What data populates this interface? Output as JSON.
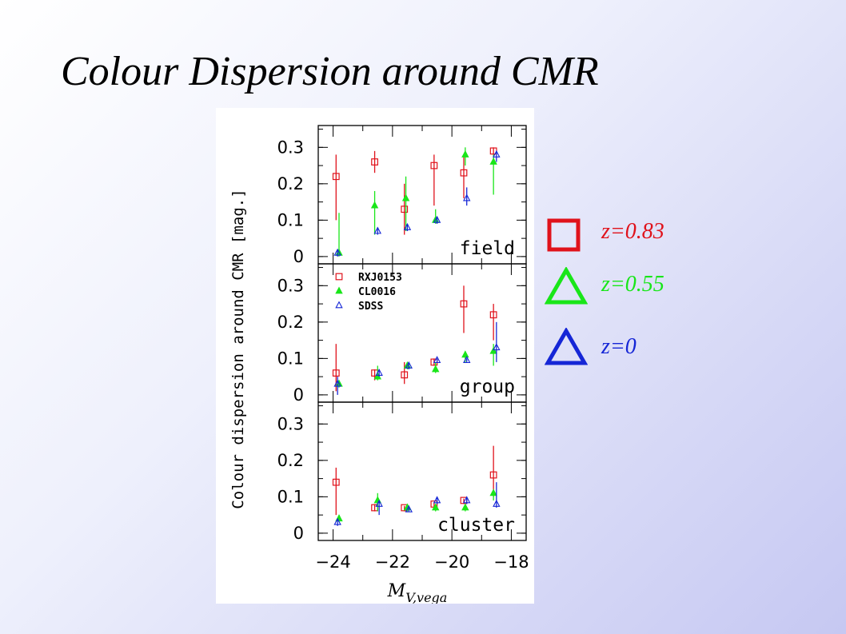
{
  "slide": {
    "title": "Colour Dispersion around CMR"
  },
  "key_legend": [
    {
      "label": "z=0.83",
      "marker": "square",
      "color": "#e0121b"
    },
    {
      "label": "z=0.55",
      "marker": "triangle",
      "color": "#19e619"
    },
    {
      "label": "z=0",
      "marker": "triangle",
      "color": "#1526d6"
    }
  ],
  "chart_data": {
    "type": "scatter",
    "ylabel": "Colour dispersion around CMR [mag.]",
    "xlabel": "M_V,vega",
    "xlim": [
      -24.5,
      -17.5
    ],
    "x_ticks": [
      "−24",
      "−22",
      "−20",
      "−18"
    ],
    "x_tick_values": [
      -24,
      -22,
      -20,
      -18
    ],
    "ylim": [
      -0.02,
      0.36
    ],
    "y_ticks": [
      "0",
      "0.1",
      "0.2",
      "0.3"
    ],
    "y_tick_values": [
      0,
      0.1,
      0.2,
      0.3
    ],
    "panel_legend": [
      {
        "name": "RXJ0153",
        "marker": "square",
        "color": "#e0121b"
      },
      {
        "name": "CL0016",
        "marker": "triangle-filled",
        "color": "#19e619"
      },
      {
        "name": "SDSS",
        "marker": "triangle-open",
        "color": "#1526d6"
      }
    ],
    "panels": [
      {
        "name": "field",
        "series": [
          {
            "name": "RXJ0153",
            "points": [
              {
                "x": -23.9,
                "y": 0.22,
                "lo": 0.1,
                "hi": 0.28
              },
              {
                "x": -22.6,
                "y": 0.26,
                "lo": 0.23,
                "hi": 0.29
              },
              {
                "x": -21.6,
                "y": 0.13,
                "lo": 0.06,
                "hi": 0.2
              },
              {
                "x": -20.6,
                "y": 0.25,
                "lo": 0.14,
                "hi": 0.28
              },
              {
                "x": -19.6,
                "y": 0.23,
                "lo": 0.16,
                "hi": 0.28
              },
              {
                "x": -18.6,
                "y": 0.29,
                "lo": 0.26,
                "hi": 0.3
              }
            ]
          },
          {
            "name": "CL0016",
            "points": [
              {
                "x": -23.8,
                "y": 0.01,
                "lo": 0.0,
                "hi": 0.12
              },
              {
                "x": -22.6,
                "y": 0.14,
                "lo": 0.06,
                "hi": 0.18
              },
              {
                "x": -21.55,
                "y": 0.16,
                "lo": 0.07,
                "hi": 0.22
              },
              {
                "x": -20.55,
                "y": 0.1,
                "lo": 0.09,
                "hi": 0.13
              },
              {
                "x": -19.55,
                "y": 0.28,
                "lo": 0.25,
                "hi": 0.3
              },
              {
                "x": -18.6,
                "y": 0.26,
                "lo": 0.17,
                "hi": 0.28
              }
            ]
          },
          {
            "name": "SDSS",
            "points": [
              {
                "x": -23.85,
                "y": 0.01,
                "lo": 0.0,
                "hi": 0.02
              },
              {
                "x": -22.5,
                "y": 0.07,
                "lo": 0.06,
                "hi": 0.08
              },
              {
                "x": -21.5,
                "y": 0.08,
                "lo": 0.07,
                "hi": 0.09
              },
              {
                "x": -20.5,
                "y": 0.1,
                "lo": 0.09,
                "hi": 0.11
              },
              {
                "x": -19.5,
                "y": 0.16,
                "lo": 0.14,
                "hi": 0.19
              },
              {
                "x": -18.5,
                "y": 0.28,
                "lo": 0.26,
                "hi": 0.29
              }
            ]
          }
        ]
      },
      {
        "name": "group",
        "series": [
          {
            "name": "RXJ0153",
            "points": [
              {
                "x": -23.9,
                "y": 0.06,
                "lo": 0.01,
                "hi": 0.14
              },
              {
                "x": -22.6,
                "y": 0.06,
                "lo": 0.04,
                "hi": 0.07
              },
              {
                "x": -21.6,
                "y": 0.055,
                "lo": 0.03,
                "hi": 0.09
              },
              {
                "x": -20.6,
                "y": 0.09,
                "lo": 0.08,
                "hi": 0.1
              },
              {
                "x": -19.6,
                "y": 0.25,
                "lo": 0.17,
                "hi": 0.3
              },
              {
                "x": -18.6,
                "y": 0.22,
                "lo": 0.15,
                "hi": 0.25
              }
            ]
          },
          {
            "name": "CL0016",
            "points": [
              {
                "x": -23.8,
                "y": 0.03,
                "lo": 0.02,
                "hi": 0.04
              },
              {
                "x": -22.5,
                "y": 0.05,
                "lo": 0.04,
                "hi": 0.08
              },
              {
                "x": -21.5,
                "y": 0.08,
                "lo": 0.07,
                "hi": 0.09
              },
              {
                "x": -20.55,
                "y": 0.07,
                "lo": 0.06,
                "hi": 0.09
              },
              {
                "x": -19.55,
                "y": 0.11,
                "lo": 0.09,
                "hi": 0.12
              },
              {
                "x": -18.6,
                "y": 0.12,
                "lo": 0.08,
                "hi": 0.14
              }
            ]
          },
          {
            "name": "SDSS",
            "points": [
              {
                "x": -23.85,
                "y": 0.03,
                "lo": 0.0,
                "hi": 0.05
              },
              {
                "x": -22.45,
                "y": 0.06,
                "lo": 0.05,
                "hi": 0.07
              },
              {
                "x": -21.45,
                "y": 0.08,
                "lo": 0.07,
                "hi": 0.09
              },
              {
                "x": -20.5,
                "y": 0.095,
                "lo": 0.09,
                "hi": 0.1
              },
              {
                "x": -19.5,
                "y": 0.095,
                "lo": 0.09,
                "hi": 0.1
              },
              {
                "x": -18.5,
                "y": 0.13,
                "lo": 0.09,
                "hi": 0.2
              }
            ]
          }
        ]
      },
      {
        "name": "cluster",
        "series": [
          {
            "name": "RXJ0153",
            "points": [
              {
                "x": -23.9,
                "y": 0.14,
                "lo": 0.05,
                "hi": 0.18
              },
              {
                "x": -22.6,
                "y": 0.07,
                "lo": 0.06,
                "hi": 0.08
              },
              {
                "x": -21.6,
                "y": 0.07,
                "lo": 0.06,
                "hi": 0.075
              },
              {
                "x": -20.6,
                "y": 0.08,
                "lo": 0.07,
                "hi": 0.085
              },
              {
                "x": -19.6,
                "y": 0.09,
                "lo": 0.08,
                "hi": 0.095
              },
              {
                "x": -18.6,
                "y": 0.16,
                "lo": 0.1,
                "hi": 0.24
              }
            ]
          },
          {
            "name": "CL0016",
            "points": [
              {
                "x": -23.8,
                "y": 0.04,
                "lo": 0.03,
                "hi": 0.05
              },
              {
                "x": -22.5,
                "y": 0.09,
                "lo": 0.06,
                "hi": 0.11
              },
              {
                "x": -21.5,
                "y": 0.07,
                "lo": 0.06,
                "hi": 0.08
              },
              {
                "x": -20.55,
                "y": 0.07,
                "lo": 0.06,
                "hi": 0.08
              },
              {
                "x": -19.55,
                "y": 0.07,
                "lo": 0.06,
                "hi": 0.08
              },
              {
                "x": -18.6,
                "y": 0.11,
                "lo": 0.09,
                "hi": 0.12
              }
            ]
          },
          {
            "name": "SDSS",
            "points": [
              {
                "x": -23.85,
                "y": 0.03,
                "lo": 0.02,
                "hi": 0.04
              },
              {
                "x": -22.45,
                "y": 0.08,
                "lo": 0.05,
                "hi": 0.09
              },
              {
                "x": -21.45,
                "y": 0.065,
                "lo": 0.06,
                "hi": 0.07
              },
              {
                "x": -20.5,
                "y": 0.09,
                "lo": 0.08,
                "hi": 0.1
              },
              {
                "x": -19.5,
                "y": 0.09,
                "lo": 0.08,
                "hi": 0.1
              },
              {
                "x": -18.5,
                "y": 0.08,
                "lo": 0.07,
                "hi": 0.14
              }
            ]
          }
        ]
      }
    ]
  }
}
